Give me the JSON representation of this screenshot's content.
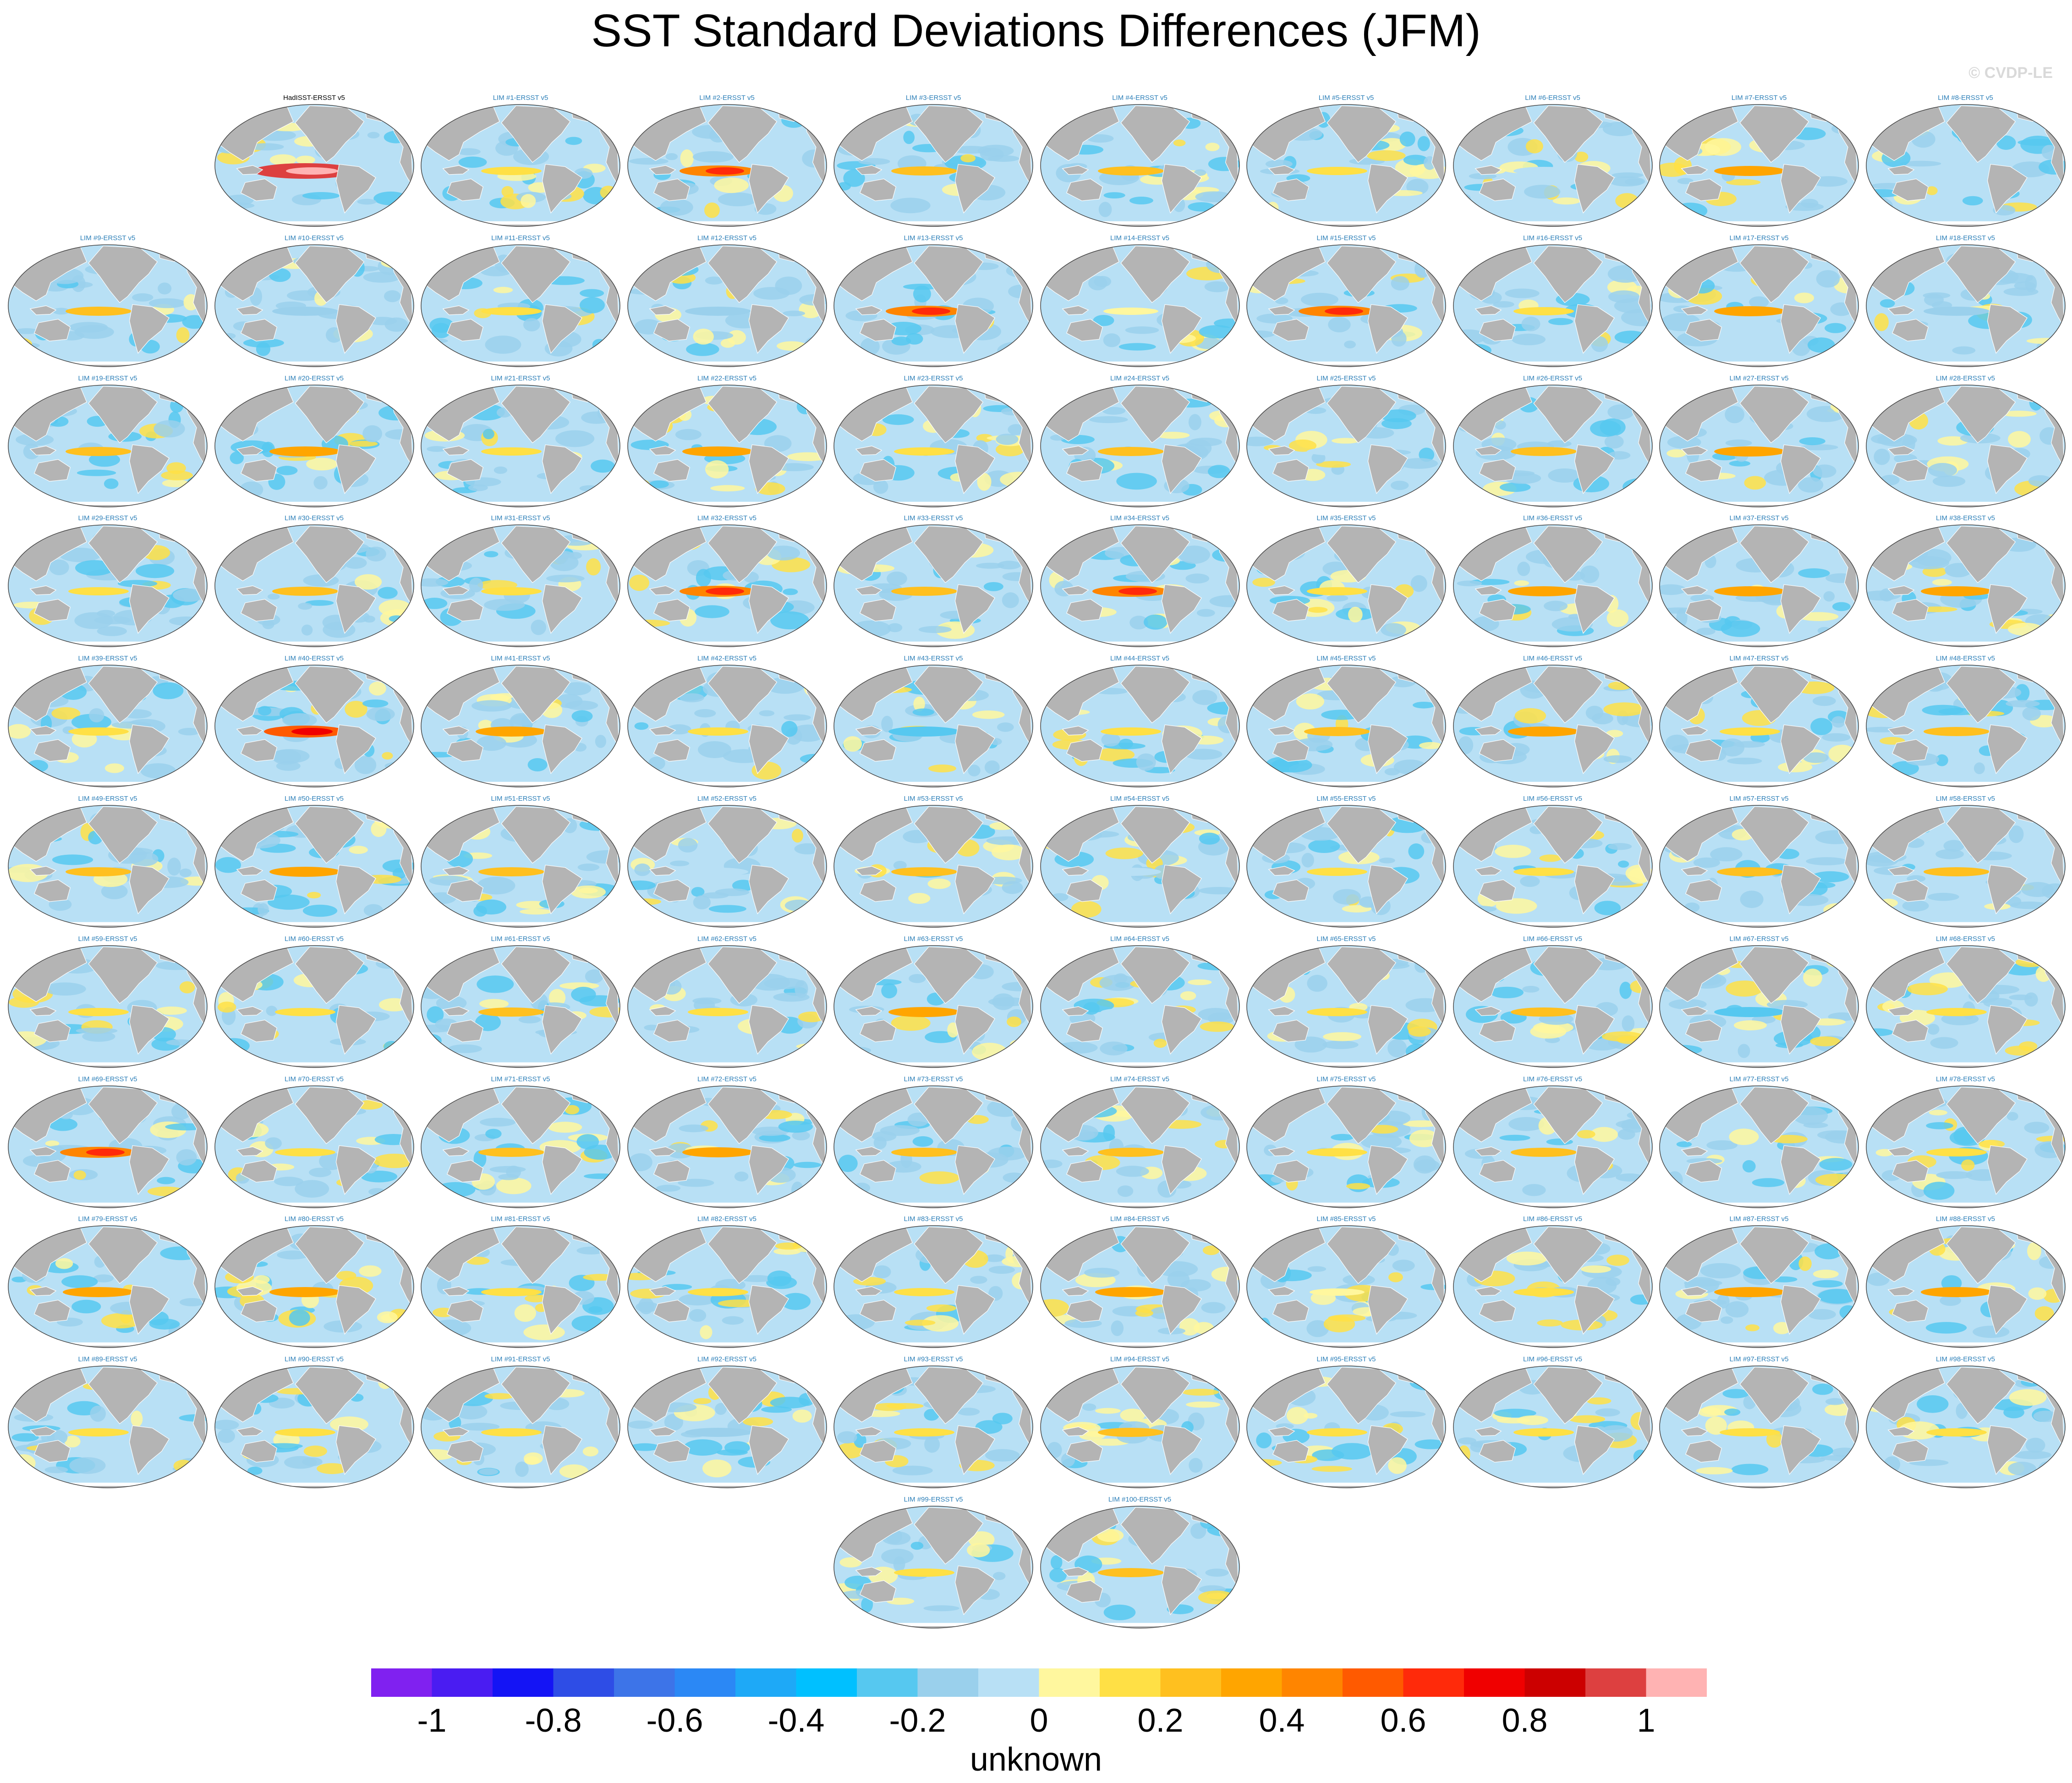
{
  "title": "SST Standard Deviations Differences (JFM)",
  "watermark": "© CVDP-LE",
  "chart_data": {
    "type": "heatmap",
    "title": "SST Standard Deviations Differences (JFM)",
    "panel_titles": [
      "HadISST-ERSST v5",
      "LIM #1-ERSST v5",
      "LIM #2-ERSST v5",
      "LIM #3-ERSST v5",
      "LIM #4-ERSST v5",
      "LIM #5-ERSST v5",
      "LIM #6-ERSST v5",
      "LIM #7-ERSST v5",
      "LIM #8-ERSST v5",
      "LIM #9-ERSST v5",
      "LIM #10-ERSST v5",
      "LIM #11-ERSST v5",
      "LIM #12-ERSST v5",
      "LIM #13-ERSST v5",
      "LIM #14-ERSST v5",
      "LIM #15-ERSST v5",
      "LIM #16-ERSST v5",
      "LIM #17-ERSST v5",
      "LIM #18-ERSST v5",
      "LIM #19-ERSST v5",
      "LIM #20-ERSST v5",
      "LIM #21-ERSST v5",
      "LIM #22-ERSST v5",
      "LIM #23-ERSST v5",
      "LIM #24-ERSST v5",
      "LIM #25-ERSST v5",
      "LIM #26-ERSST v5",
      "LIM #27-ERSST v5",
      "LIM #28-ERSST v5",
      "LIM #29-ERSST v5",
      "LIM #30-ERSST v5",
      "LIM #31-ERSST v5",
      "LIM #32-ERSST v5",
      "LIM #33-ERSST v5",
      "LIM #34-ERSST v5",
      "LIM #35-ERSST v5",
      "LIM #36-ERSST v5",
      "LIM #37-ERSST v5",
      "LIM #38-ERSST v5",
      "LIM #39-ERSST v5",
      "LIM #40-ERSST v5",
      "LIM #41-ERSST v5",
      "LIM #42-ERSST v5",
      "LIM #43-ERSST v5",
      "LIM #44-ERSST v5",
      "LIM #45-ERSST v5",
      "LIM #46-ERSST v5",
      "LIM #47-ERSST v5",
      "LIM #48-ERSST v5",
      "LIM #49-ERSST v5",
      "LIM #50-ERSST v5",
      "LIM #51-ERSST v5",
      "LIM #52-ERSST v5",
      "LIM #53-ERSST v5",
      "LIM #54-ERSST v5",
      "LIM #55-ERSST v5",
      "LIM #56-ERSST v5",
      "LIM #57-ERSST v5",
      "LIM #58-ERSST v5",
      "LIM #59-ERSST v5",
      "LIM #60-ERSST v5",
      "LIM #61-ERSST v5",
      "LIM #62-ERSST v5",
      "LIM #63-ERSST v5",
      "LIM #64-ERSST v5",
      "LIM #65-ERSST v5",
      "LIM #66-ERSST v5",
      "LIM #67-ERSST v5",
      "LIM #68-ERSST v5",
      "LIM #69-ERSST v5",
      "LIM #70-ERSST v5",
      "LIM #71-ERSST v5",
      "LIM #72-ERSST v5",
      "LIM #73-ERSST v5",
      "LIM #74-ERSST v5",
      "LIM #75-ERSST v5",
      "LIM #76-ERSST v5",
      "LIM #77-ERSST v5",
      "LIM #78-ERSST v5",
      "LIM #79-ERSST v5",
      "LIM #80-ERSST v5",
      "LIM #81-ERSST v5",
      "LIM #82-ERSST v5",
      "LIM #83-ERSST v5",
      "LIM #84-ERSST v5",
      "LIM #85-ERSST v5",
      "LIM #86-ERSST v5",
      "LIM #87-ERSST v5",
      "LIM #88-ERSST v5",
      "LIM #89-ERSST v5",
      "LIM #90-ERSST v5",
      "LIM #91-ERSST v5",
      "LIM #92-ERSST v5",
      "LIM #93-ERSST v5",
      "LIM #94-ERSST v5",
      "LIM #95-ERSST v5",
      "LIM #96-ERSST v5",
      "LIM #97-ERSST v5",
      "LIM #98-ERSST v5",
      "LIM #99-ERSST v5",
      "LIM #100-ERSST v5"
    ],
    "tropical_pacific_anomaly": [
      0.9,
      0.1,
      0.4,
      0.2,
      0.2,
      0.1,
      -0.1,
      0.3,
      -0.1,
      0.2,
      -0.2,
      0.1,
      -0.2,
      0.4,
      0.0,
      0.4,
      0.1,
      0.3,
      -0.2,
      0.2,
      0.3,
      0.1,
      0.3,
      0.1,
      0.2,
      -0.1,
      0.2,
      0.3,
      -0.1,
      0.1,
      0.2,
      0.1,
      0.4,
      0.2,
      0.4,
      0.1,
      0.3,
      0.3,
      0.3,
      0.1,
      0.5,
      0.3,
      0.1,
      -0.3,
      0.1,
      0.2,
      0.3,
      0.1,
      0.2,
      0.2,
      0.3,
      0.2,
      -0.1,
      0.2,
      -0.1,
      0.1,
      0.1,
      0.2,
      0.2,
      0.1,
      0.1,
      0.2,
      0.1,
      0.3,
      -0.1,
      0.1,
      0.2,
      -0.3,
      0.1,
      0.4,
      0.1,
      0.2,
      0.3,
      0.2,
      0.2,
      0.1,
      0.2,
      -0.1,
      0.1,
      0.3,
      0.3,
      0.1,
      0.1,
      0.1,
      0.3,
      0.0,
      0.1,
      0.3,
      0.3,
      0.1,
      0.1,
      0.1,
      -0.2,
      0.1,
      0.2,
      0.1,
      0.1,
      0.1,
      0.1,
      0.1,
      0.2
    ],
    "colorbar": {
      "colors": [
        "#8021f0",
        "#4a1cf2",
        "#1414f5",
        "#2e4de6",
        "#3d74e8",
        "#2b88f5",
        "#1ea9f7",
        "#00c0ff",
        "#56c8f0",
        "#9ad0ec",
        "#b8e0f5",
        "#fff79e",
        "#ffe045",
        "#ffc01f",
        "#ffa500",
        "#ff8500",
        "#ff5a00",
        "#ff2a0a",
        "#f00000",
        "#cc0000",
        "#dd4040",
        "#ffb3b3"
      ],
      "tick_labels": [
        "-1",
        "-0.8",
        "-0.6",
        "-0.4",
        "-0.2",
        "0",
        "0.2",
        "0.4",
        "0.6",
        "0.8",
        "1"
      ],
      "label": "unknown"
    }
  },
  "colors": {
    "land": "#b4b4b4",
    "coast": "#ffffff",
    "outline": "#444444",
    "ocean_base": "#b8e0f5",
    "ocean_mid": "#9ad0ec",
    "ocean_strong": "#56c8f0",
    "warm_weak": "#fff79e",
    "warm_mid": "#ffe045",
    "warm_strong": "#ffc01f",
    "warm_extreme": "#ff5a00"
  }
}
